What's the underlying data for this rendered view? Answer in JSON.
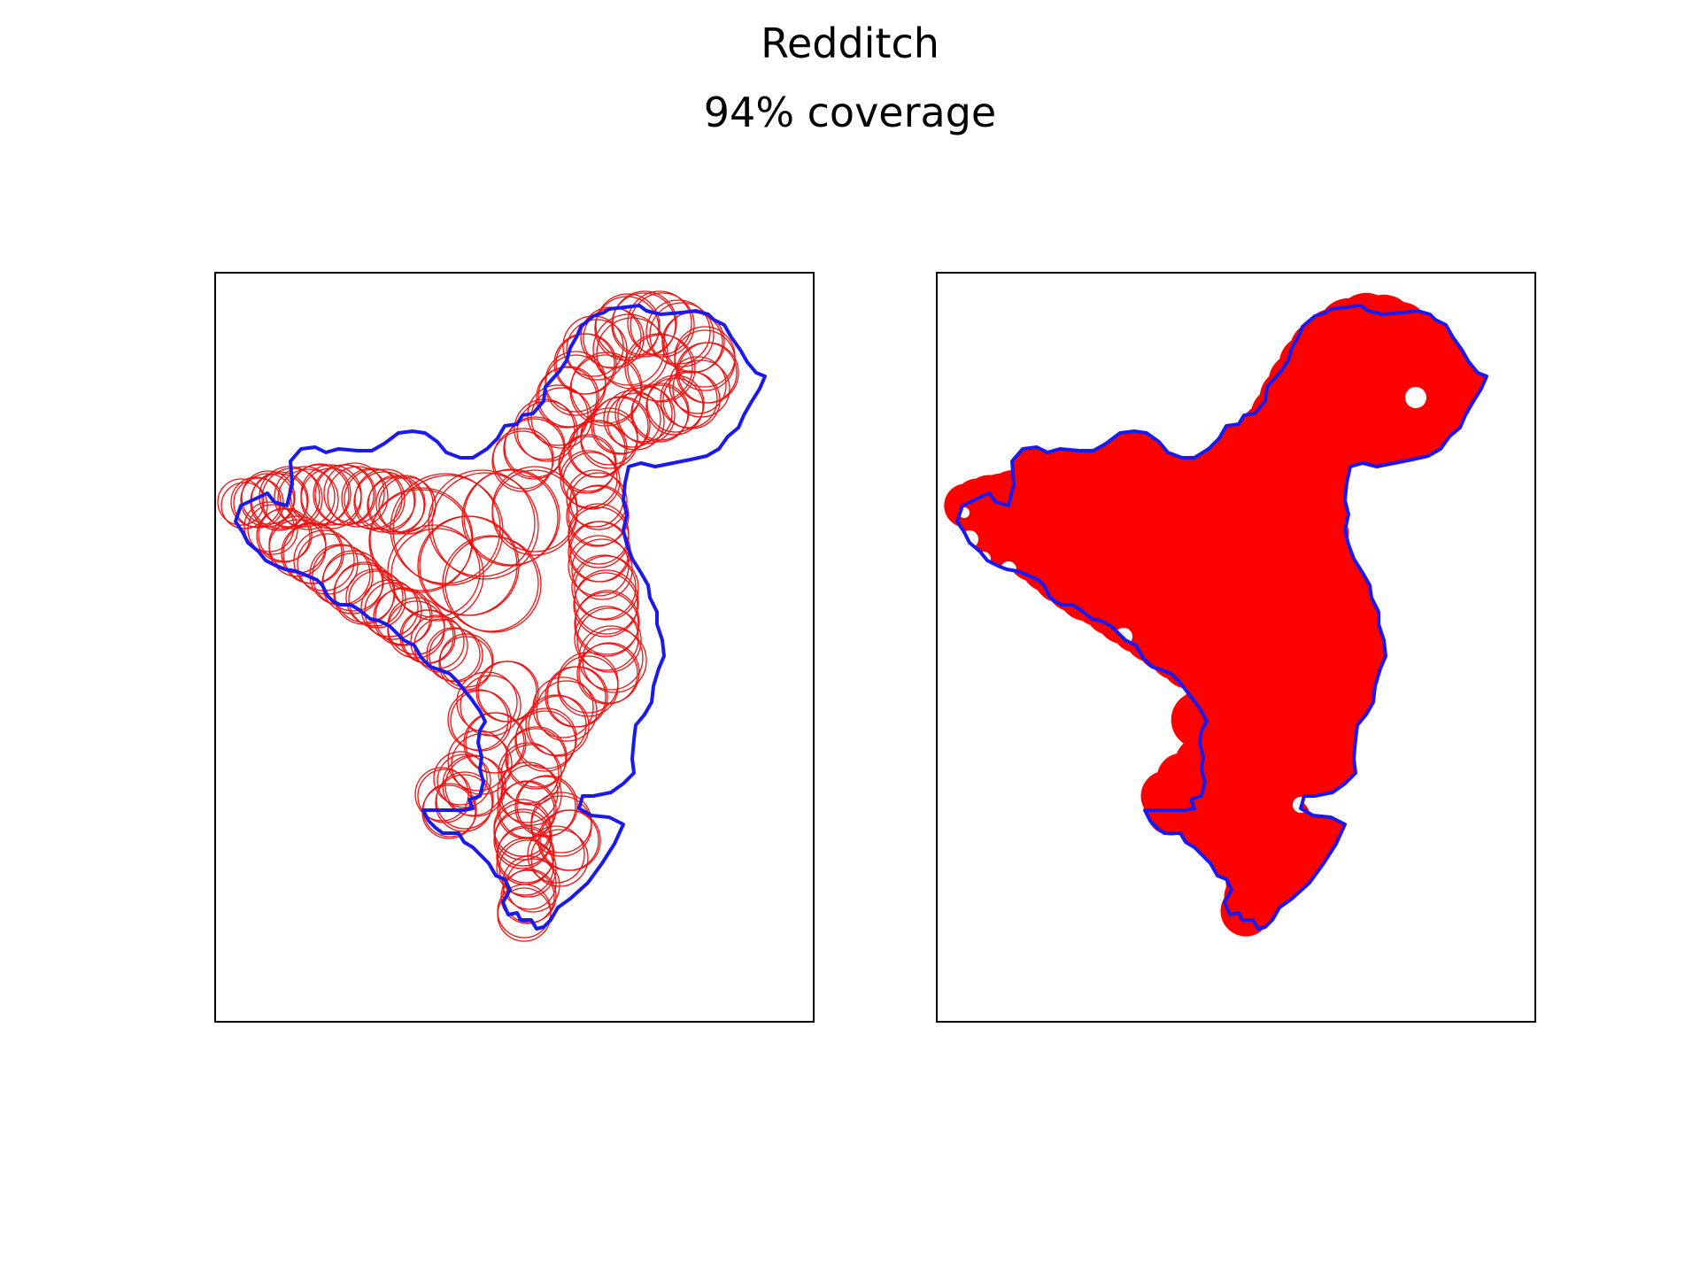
{
  "figure": {
    "title": "Redditch",
    "subtitle": "94% coverage"
  },
  "colors": {
    "boundary": "#1a1aee",
    "circles": "#ee1111",
    "fill": "#ff0000",
    "frame": "#000000"
  },
  "panels": [
    {
      "name": "circles-panel",
      "style": "circle-outlines"
    },
    {
      "name": "filled-panel",
      "style": "filled-coverage"
    }
  ]
}
